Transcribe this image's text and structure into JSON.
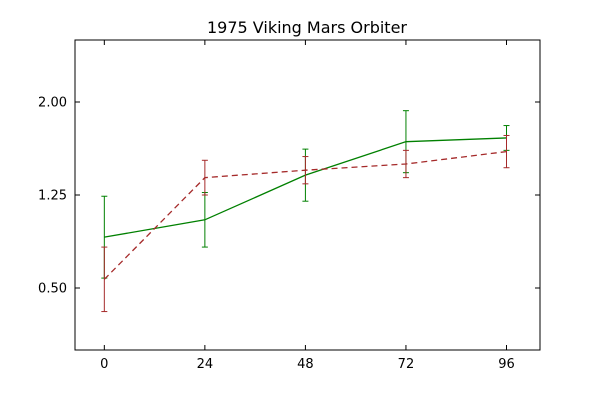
{
  "chart_data": {
    "type": "line",
    "title": "1975 Viking Mars Orbiter",
    "xlabel": "",
    "ylabel": "",
    "x": [
      0,
      24,
      48,
      72,
      96
    ],
    "xlim": [
      -7,
      104
    ],
    "ylim": [
      0.0,
      2.5
    ],
    "xticks": [
      0,
      24,
      48,
      72,
      96
    ],
    "xtick_labels": [
      "0",
      "24",
      "48",
      "72",
      "96"
    ],
    "yticks": [
      0.5,
      1.25,
      2.0
    ],
    "ytick_labels": [
      "0.50",
      "1.25",
      "2.00"
    ],
    "grid": false,
    "legend": "none",
    "series": [
      {
        "color": "#008000",
        "linestyle": "solid",
        "values": [
          0.91,
          1.05,
          1.41,
          1.68,
          1.71
        ],
        "errors": [
          0.33,
          0.22,
          0.21,
          0.25,
          0.1
        ]
      },
      {
        "color": "#a52a2a",
        "linestyle": "dashed",
        "values": [
          0.57,
          1.39,
          1.45,
          1.5,
          1.6
        ],
        "errors": [
          0.26,
          0.14,
          0.11,
          0.11,
          0.13
        ]
      }
    ]
  }
}
